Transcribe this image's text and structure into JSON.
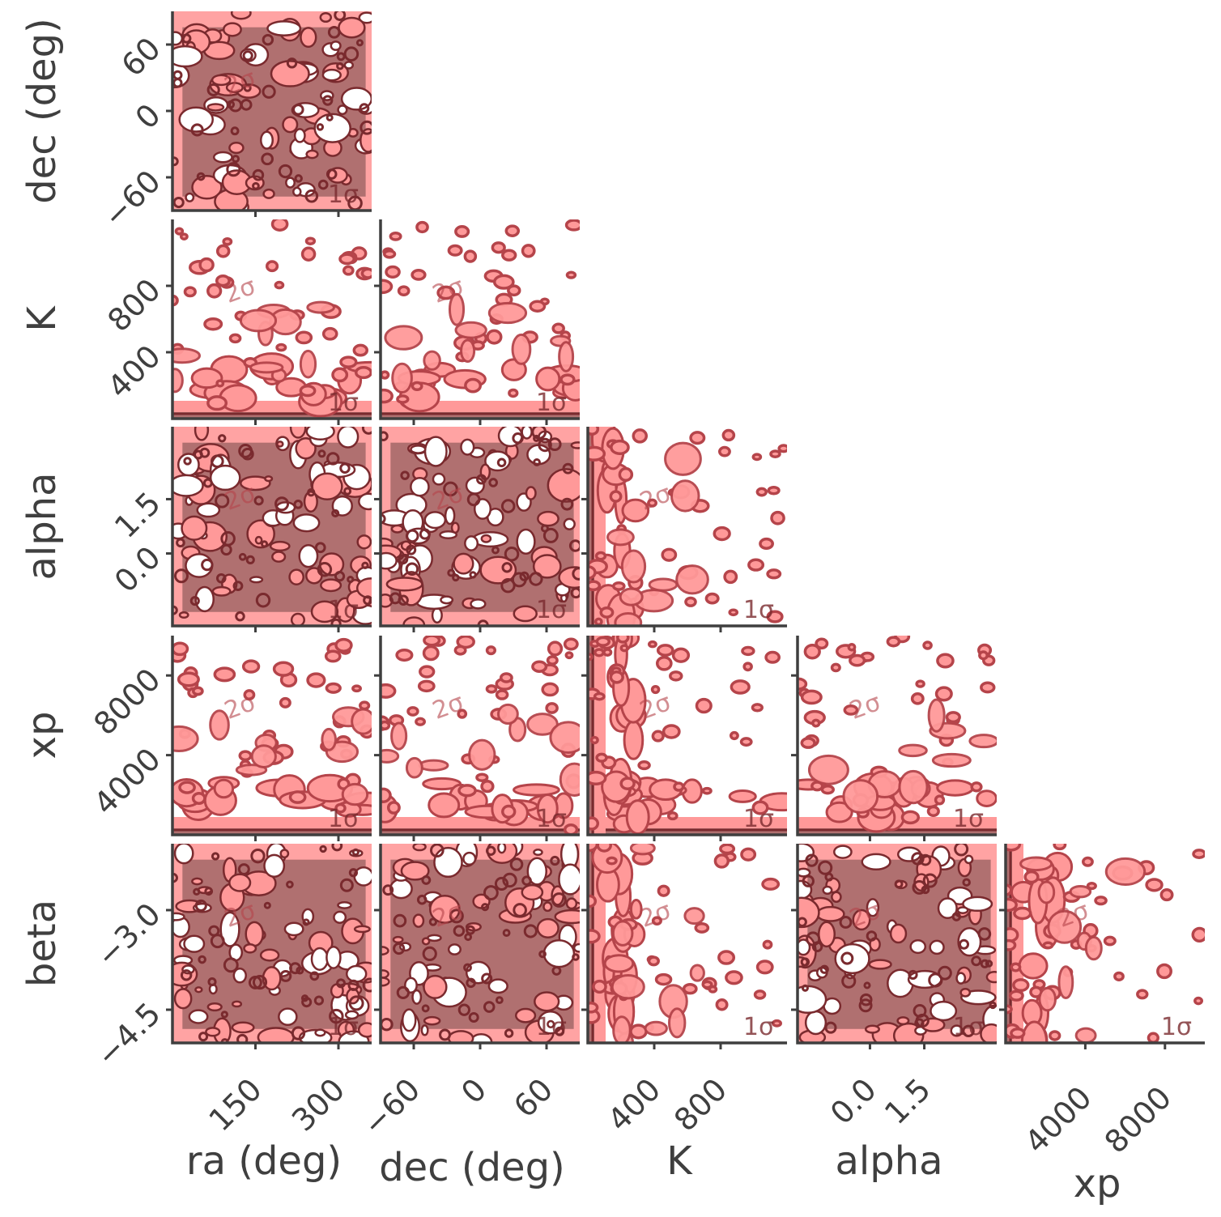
{
  "chart_data": {
    "type": "corner",
    "parameters": [
      {
        "label": "ra (deg)",
        "range": [
          0,
          360
        ],
        "ticks": [
          150,
          300
        ],
        "tick_labels": [
          "150",
          "300"
        ]
      },
      {
        "label": "dec (deg)",
        "range": [
          -90,
          90
        ],
        "ticks": [
          -60,
          0,
          60
        ],
        "tick_labels": [
          "−60",
          "0",
          "60"
        ]
      },
      {
        "label": "K",
        "range": [
          0,
          1200
        ],
        "ticks": [
          400,
          800
        ],
        "tick_labels": [
          "400",
          "800"
        ]
      },
      {
        "label": "alpha",
        "range": [
          -2,
          3.5
        ],
        "ticks": [
          0.0,
          1.5
        ],
        "tick_labels": [
          "0.0",
          "1.5"
        ]
      },
      {
        "label": "xp",
        "range": [
          0,
          10000
        ],
        "ticks": [
          4000,
          8000
        ],
        "tick_labels": [
          "4000",
          "8000"
        ]
      },
      {
        "label": "beta",
        "range": [
          -5,
          -2
        ],
        "ticks": [
          -3.0,
          -4.5
        ],
        "tick_labels": [
          "−3.0",
          "−4.5"
        ]
      }
    ],
    "contour_levels": [
      "1σ",
      "2σ"
    ],
    "colors": {
      "one_sigma": "#b07070",
      "two_sigma": "#ff9999",
      "line": "#b5444a",
      "dark_line": "#7a2a2e",
      "axis": "#3f3f3f"
    },
    "grid": false
  }
}
